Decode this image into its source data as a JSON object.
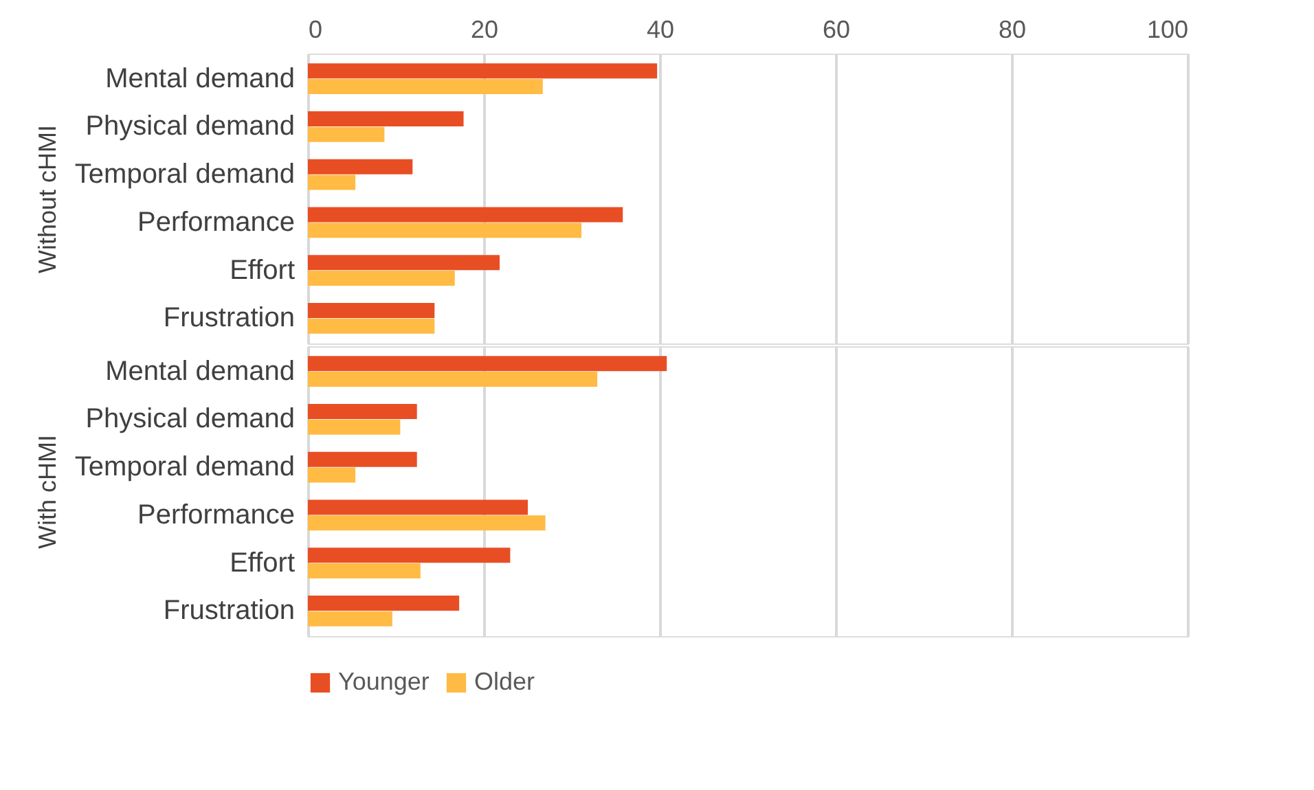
{
  "chart_data": [
    {
      "type": "bar",
      "orientation": "horizontal",
      "ylabel": "Without cHMI",
      "categories": [
        "Mental demand",
        "Physical demand",
        "Temporal demand",
        "Performance",
        "Effort",
        "Frustration"
      ],
      "xlim": [
        0,
        100
      ],
      "xticks": [
        0,
        20,
        40,
        60,
        80,
        100
      ],
      "grid": "x",
      "legend": false,
      "series": [
        {
          "color": "#e84e24",
          "values": [
            39.7,
            17.7,
            11.9,
            35.8,
            21.8,
            14.4
          ]
        },
        {
          "color": "#ffbb44",
          "values": [
            26.7,
            8.7,
            5.4,
            31.1,
            16.7,
            14.4
          ]
        }
      ]
    },
    {
      "type": "bar",
      "orientation": "horizontal",
      "ylabel": "With cHMI",
      "categories": [
        "Mental demand",
        "Physical demand",
        "Temporal demand",
        "Performance",
        "Effort",
        "Frustration"
      ],
      "xlim": [
        0,
        100
      ],
      "xticks": [
        0,
        20,
        40,
        60,
        80,
        100
      ],
      "grid": "x",
      "legend": "bottom",
      "tick_labels": "y",
      "series": [
        {
          "name": "Younger",
          "color": "#e84e24",
          "values": [
            40.8,
            12.4,
            12.4,
            25.0,
            23.0,
            17.2
          ]
        },
        {
          "name": "Older",
          "color": "#ffbb44",
          "values": [
            32.9,
            10.5,
            5.4,
            27.0,
            12.8,
            9.6
          ]
        }
      ]
    }
  ]
}
